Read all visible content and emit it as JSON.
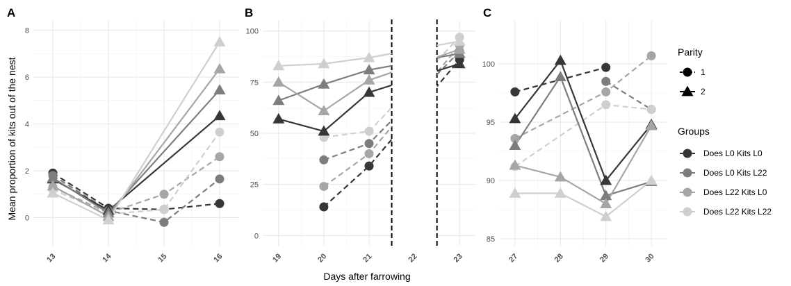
{
  "chart_data": {
    "type": "line",
    "xlabel": "Days after farrowing",
    "ylabel": "Mean proportion of kits out of the nest",
    "colors": {
      "Does L0 Kits L0": "#363636",
      "Does L0 Kits L22": "#7d7d7d",
      "Does L22 Kits L0": "#a6a6a6",
      "Does L22 Kits L22": "#cfcfcf"
    },
    "legend": {
      "parity_title": "Parity",
      "parity": [
        {
          "label": "1",
          "shape": "circle",
          "linetype": "dashed"
        },
        {
          "label": "2",
          "shape": "triangle",
          "linetype": "solid"
        }
      ],
      "groups_title": "Groups",
      "groups": [
        "Does L0 Kits L0",
        "Does L0 Kits L22",
        "Does L22 Kits L0",
        "Does L22 Kits L22"
      ]
    },
    "panels": [
      {
        "tag": "A",
        "x": [
          13,
          14,
          15,
          16
        ],
        "xticks": [
          "13",
          "14",
          "15",
          "16"
        ],
        "ylim": [
          -1.2,
          8.4
        ],
        "yticks": [
          0,
          2,
          4,
          6,
          8
        ],
        "ytick_labels": [
          "0",
          "2",
          "4",
          "6",
          "8"
        ],
        "series": [
          {
            "group": "Does L0 Kits L0",
            "parity": "1",
            "values": [
              1.9,
              0.4,
              0.35,
              0.6
            ]
          },
          {
            "group": "Does L0 Kits L22",
            "parity": "1",
            "values": [
              1.8,
              0.3,
              -0.2,
              1.65
            ]
          },
          {
            "group": "Does L22 Kits L0",
            "parity": "1",
            "values": [
              1.3,
              0.2,
              1.0,
              2.6
            ]
          },
          {
            "group": "Does L22 Kits L22",
            "parity": "1",
            "values": [
              1.2,
              0.15,
              0.35,
              3.65
            ]
          },
          {
            "group": "Does L0 Kits L0",
            "parity": "2",
            "values": [
              1.65,
              0.3,
              null,
              4.35
            ]
          },
          {
            "group": "Does L0 Kits L22",
            "parity": "2",
            "values": [
              1.7,
              0.2,
              null,
              5.45
            ]
          },
          {
            "group": "Does L22 Kits L0",
            "parity": "2",
            "values": [
              1.35,
              0.05,
              null,
              6.35
            ]
          },
          {
            "group": "Does L22 Kits L22",
            "parity": "2",
            "values": [
              1.05,
              -0.1,
              null,
              7.5
            ]
          }
        ]
      },
      {
        "tag": "B",
        "x": [
          19,
          20,
          21,
          22,
          23
        ],
        "xticks": [
          "19",
          "20",
          "21",
          "22",
          "23"
        ],
        "ylim": [
          -5,
          105
        ],
        "yticks": [
          0,
          25,
          50,
          75,
          100
        ],
        "ytick_labels": [
          "0",
          "25",
          "50",
          "75",
          "100"
        ],
        "break": [
          21.5,
          22.5
        ],
        "series": [
          {
            "group": "Does L0 Kits L0",
            "parity": "1",
            "values": [
              null,
              14,
              34,
              null,
              86
            ]
          },
          {
            "group": "Does L0 Kits L22",
            "parity": "1",
            "values": [
              null,
              37,
              45,
              null,
              90
            ]
          },
          {
            "group": "Does L22 Kits L0",
            "parity": "1",
            "values": [
              null,
              24,
              40,
              null,
              93
            ]
          },
          {
            "group": "Does L22 Kits L22",
            "parity": "1",
            "values": [
              null,
              48,
              51,
              null,
              97
            ]
          },
          {
            "group": "Does L0 Kits L0",
            "parity": "2",
            "values": [
              57,
              51,
              70,
              null,
              84
            ]
          },
          {
            "group": "Does L0 Kits L22",
            "parity": "2",
            "values": [
              66,
              74,
              81,
              null,
              89
            ]
          },
          {
            "group": "Does L22 Kits L0",
            "parity": "2",
            "values": [
              75,
              61,
              76,
              null,
              91
            ]
          },
          {
            "group": "Does L22 Kits L22",
            "parity": "2",
            "values": [
              83,
              84,
              87,
              null,
              95
            ]
          }
        ]
      },
      {
        "tag": "C",
        "x": [
          27,
          28,
          29,
          30
        ],
        "xticks": [
          "27",
          "28",
          "29",
          "30"
        ],
        "ylim": [
          84.4,
          103.7
        ],
        "yticks": [
          85,
          90,
          95,
          100
        ],
        "ytick_labels": [
          "85",
          "90",
          "95",
          "100"
        ],
        "series": [
          {
            "group": "Does L0 Kits L0",
            "parity": "1",
            "values": [
              97.6,
              null,
              99.7,
              null
            ]
          },
          {
            "group": "Does L0 Kits L22",
            "parity": "1",
            "values": [
              null,
              null,
              98.5,
              96.1
            ]
          },
          {
            "group": "Does L22 Kits L0",
            "parity": "1",
            "values": [
              93.6,
              null,
              97.6,
              100.7
            ]
          },
          {
            "group": "Does L22 Kits L22",
            "parity": "1",
            "values": [
              91.2,
              null,
              96.5,
              96.1
            ]
          },
          {
            "group": "Does L0 Kits L0",
            "parity": "2",
            "values": [
              95.3,
              100.3,
              90.0,
              94.8
            ]
          },
          {
            "group": "Does L0 Kits L22",
            "parity": "2",
            "values": [
              93.0,
              98.9,
              88.7,
              89.9
            ]
          },
          {
            "group": "Does L22 Kits L0",
            "parity": "2",
            "values": [
              91.3,
              90.3,
              88.0,
              94.7
            ]
          },
          {
            "group": "Does L22 Kits L22",
            "parity": "2",
            "values": [
              88.9,
              88.9,
              86.9,
              90.0
            ]
          }
        ]
      }
    ]
  }
}
